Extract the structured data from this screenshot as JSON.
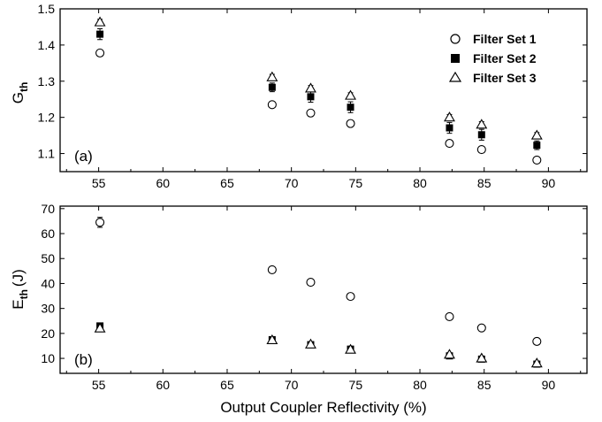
{
  "chart_data": [
    {
      "type": "scatter",
      "panel_label": "(a)",
      "xlabel": "",
      "ylabel_main": "G",
      "ylabel_sub": "th",
      "xlim": [
        52,
        93
      ],
      "ylim": [
        1.05,
        1.5
      ],
      "xticks": [
        55,
        60,
        65,
        70,
        75,
        80,
        85,
        90
      ],
      "yticks": [
        1.1,
        1.2,
        1.3,
        1.4,
        1.5
      ],
      "ytick_labels": [
        "1.1",
        "1.2",
        "1.3",
        "1.4",
        "1.5"
      ],
      "legend_position": "top-right",
      "grid": false,
      "series": [
        {
          "name": "Filter Set 1",
          "marker": "open-circle",
          "x": [
            55.1,
            68.5,
            71.5,
            74.6,
            82.3,
            84.8,
            89.1
          ],
          "y": [
            1.378,
            1.235,
            1.212,
            1.183,
            1.128,
            1.111,
            1.082
          ],
          "err": [
            0.004,
            0.004,
            0.004,
            0.004,
            0.004,
            0.004,
            0.004
          ]
        },
        {
          "name": "Filter Set 2",
          "marker": "filled-square",
          "x": [
            55.1,
            68.5,
            71.5,
            74.6,
            82.3,
            84.8,
            89.1
          ],
          "y": [
            1.43,
            1.283,
            1.257,
            1.228,
            1.171,
            1.152,
            1.123
          ],
          "err": [
            0.015,
            0.012,
            0.015,
            0.015,
            0.015,
            0.015,
            0.012
          ]
        },
        {
          "name": "Filter Set 3",
          "marker": "open-triangle",
          "x": [
            55.1,
            68.5,
            71.5,
            74.6,
            82.3,
            84.8,
            89.1
          ],
          "y": [
            1.463,
            1.311,
            1.28,
            1.26,
            1.2,
            1.18,
            1.15
          ],
          "err": [
            0.008,
            0.008,
            0.008,
            0.008,
            0.008,
            0.008,
            0.008
          ]
        }
      ],
      "legend": {
        "items": [
          {
            "label": "Filter Set 1",
            "marker": "open-circle"
          },
          {
            "label": "Filter Set 2",
            "marker": "filled-square"
          },
          {
            "label": "Filter Set 3",
            "marker": "open-triangle"
          }
        ]
      }
    },
    {
      "type": "scatter",
      "panel_label": "(b)",
      "xlabel": "Output Coupler Reflectivity (%)",
      "ylabel_main": "E",
      "ylabel_sub": "th",
      "ylabel_unit": "(J)",
      "xlim": [
        52,
        93
      ],
      "ylim": [
        4,
        71
      ],
      "xticks": [
        55,
        60,
        65,
        70,
        75,
        80,
        85,
        90
      ],
      "yticks": [
        10,
        20,
        30,
        40,
        50,
        60,
        70
      ],
      "ytick_labels": [
        "10",
        "20",
        "30",
        "40",
        "50",
        "60",
        "70"
      ],
      "grid": false,
      "series": [
        {
          "name": "Filter Set 1",
          "marker": "open-circle",
          "x": [
            55.1,
            68.5,
            71.5,
            74.6,
            82.3,
            84.8,
            89.1
          ],
          "y": [
            64.5,
            45.5,
            40.5,
            34.8,
            26.7,
            22.2,
            16.8
          ],
          "err": [
            2.0,
            0.8,
            0.8,
            0.8,
            0.8,
            0.8,
            0.8
          ]
        },
        {
          "name": "Filter Set 2",
          "marker": "filled-square",
          "x": [
            55.1,
            68.5,
            71.5,
            74.6,
            82.3,
            84.8,
            89.1
          ],
          "y": [
            23.0,
            17.5,
            15.5,
            13.7,
            11.0,
            9.7,
            7.7
          ],
          "err": [
            0.8,
            0.6,
            0.6,
            0.6,
            0.6,
            0.6,
            0.6
          ]
        },
        {
          "name": "Filter Set 3",
          "marker": "open-triangle",
          "x": [
            55.1,
            68.5,
            71.5,
            74.6,
            82.3,
            84.8,
            89.1
          ],
          "y": [
            22.0,
            17.3,
            15.6,
            13.5,
            11.5,
            10.0,
            8.0
          ],
          "err": [
            0.8,
            0.6,
            0.6,
            0.6,
            0.6,
            0.6,
            0.6
          ]
        }
      ]
    }
  ]
}
